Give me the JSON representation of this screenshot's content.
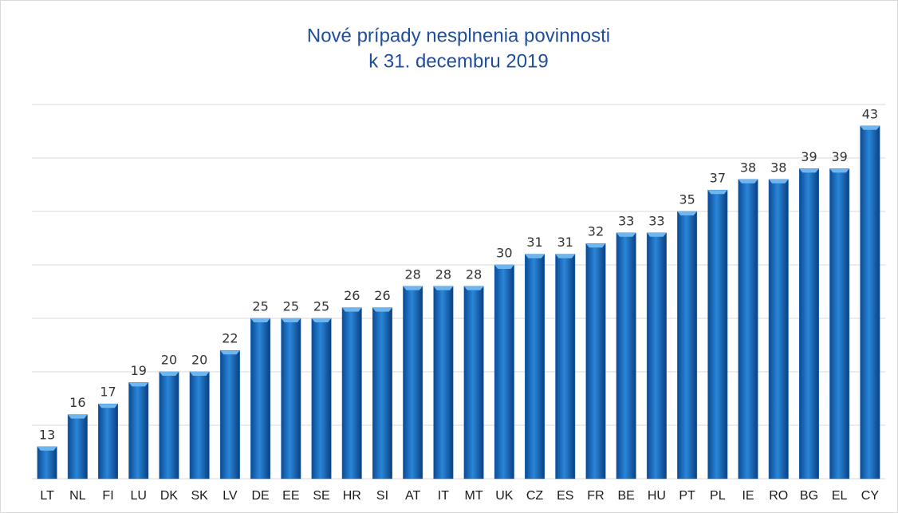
{
  "chart_data": {
    "type": "bar",
    "title": [
      "Nové prípady nesplnenia povinnosti",
      "k 31. decembru 2019"
    ],
    "categories": [
      "LT",
      "NL",
      "FI",
      "LU",
      "DK",
      "SK",
      "LV",
      "DE",
      "EE",
      "SE",
      "HR",
      "SI",
      "AT",
      "IT",
      "MT",
      "UK",
      "CZ",
      "ES",
      "FR",
      "BE",
      "HU",
      "PT",
      "PL",
      "IE",
      "RO",
      "BG",
      "EL",
      "CY"
    ],
    "values": [
      13,
      16,
      17,
      19,
      20,
      20,
      22,
      25,
      25,
      25,
      26,
      26,
      28,
      28,
      28,
      30,
      31,
      31,
      32,
      33,
      33,
      35,
      37,
      38,
      38,
      39,
      39,
      43
    ],
    "color": "#1d6cc0",
    "ylim": [
      10,
      45
    ],
    "yticks": [
      10,
      15,
      20,
      25,
      30,
      35,
      40,
      45
    ],
    "grid": true
  }
}
